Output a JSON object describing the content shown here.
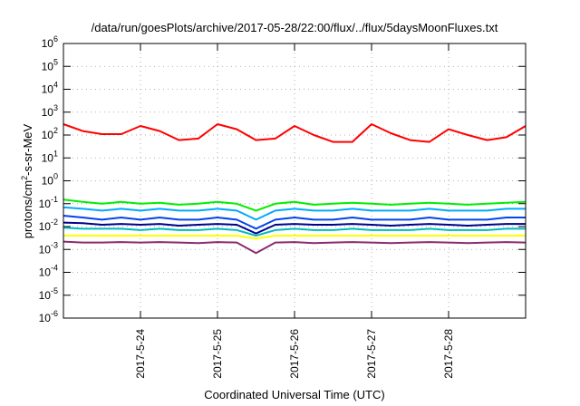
{
  "chart_data": {
    "type": "line",
    "title": "/data/run/goesPlots/archive/2017-05-28/22:00/flux/../flux/5daysMoonFluxes.txt",
    "xlabel": "Coordinated Universal Time (UTC)",
    "ylabel": "protons/cm2-s-sr-MeV",
    "yscale": "log",
    "ylim": [
      1e-06,
      1000000.0
    ],
    "xlim": [
      "2017-05-23 00:00",
      "2017-05-29 00:00"
    ],
    "grid": true,
    "legend": "none",
    "x_ticks": [
      "2017-5-24",
      "2017-5-25",
      "2017-5-26",
      "2017-5-27",
      "2017-5-28"
    ],
    "y_ticks": [
      {
        "base": "10",
        "exp": "-6"
      },
      {
        "base": "10",
        "exp": "-5"
      },
      {
        "base": "10",
        "exp": "-4"
      },
      {
        "base": "10",
        "exp": "-3"
      },
      {
        "base": "10",
        "exp": "-2"
      },
      {
        "base": "10",
        "exp": "-1"
      },
      {
        "base": "10",
        "exp": "0"
      },
      {
        "base": "10",
        "exp": "1"
      },
      {
        "base": "10",
        "exp": "2"
      },
      {
        "base": "10",
        "exp": "3"
      },
      {
        "base": "10",
        "exp": "4"
      },
      {
        "base": "10",
        "exp": "5"
      },
      {
        "base": "10",
        "exp": "6"
      }
    ],
    "series": [
      {
        "color": "#ff0000",
        "x": [
          "2017-05-23 00:00",
          "2017-05-23 06:00",
          "2017-05-23 12:00",
          "2017-05-23 18:00",
          "2017-05-24 00:00",
          "2017-05-24 06:00",
          "2017-05-24 12:00",
          "2017-05-24 18:00",
          "2017-05-25 00:00",
          "2017-05-25 06:00",
          "2017-05-25 12:00",
          "2017-05-25 18:00",
          "2017-05-26 00:00",
          "2017-05-26 06:00",
          "2017-05-26 12:00",
          "2017-05-26 18:00",
          "2017-05-27 00:00",
          "2017-05-27 06:00",
          "2017-05-27 12:00",
          "2017-05-27 18:00",
          "2017-05-28 00:00",
          "2017-05-28 06:00",
          "2017-05-28 12:00",
          "2017-05-28 18:00",
          "2017-05-29 00:00"
        ],
        "values": [
          300,
          150,
          110,
          110,
          250,
          150,
          60,
          70,
          300,
          180,
          60,
          70,
          250,
          100,
          50,
          50,
          300,
          120,
          60,
          50,
          180,
          100,
          60,
          80,
          250
        ]
      },
      {
        "color": "#00ee00",
        "x": [
          "2017-05-23 00:00",
          "2017-05-23 06:00",
          "2017-05-23 12:00",
          "2017-05-23 18:00",
          "2017-05-24 00:00",
          "2017-05-24 06:00",
          "2017-05-24 12:00",
          "2017-05-24 18:00",
          "2017-05-25 00:00",
          "2017-05-25 06:00",
          "2017-05-25 12:00",
          "2017-05-25 18:00",
          "2017-05-26 00:00",
          "2017-05-26 06:00",
          "2017-05-26 12:00",
          "2017-05-26 18:00",
          "2017-05-27 00:00",
          "2017-05-27 06:00",
          "2017-05-27 12:00",
          "2017-05-27 18:00",
          "2017-05-28 00:00",
          "2017-05-28 06:00",
          "2017-05-28 12:00",
          "2017-05-28 18:00",
          "2017-05-29 00:00"
        ],
        "values": [
          0.15,
          0.12,
          0.1,
          0.12,
          0.1,
          0.11,
          0.09,
          0.1,
          0.12,
          0.1,
          0.05,
          0.1,
          0.12,
          0.09,
          0.1,
          0.11,
          0.1,
          0.09,
          0.1,
          0.11,
          0.1,
          0.09,
          0.1,
          0.11,
          0.12
        ]
      },
      {
        "color": "#00aaff",
        "x": [
          "2017-05-23 00:00",
          "2017-05-23 06:00",
          "2017-05-23 12:00",
          "2017-05-23 18:00",
          "2017-05-24 00:00",
          "2017-05-24 06:00",
          "2017-05-24 12:00",
          "2017-05-24 18:00",
          "2017-05-25 00:00",
          "2017-05-25 06:00",
          "2017-05-25 12:00",
          "2017-05-25 18:00",
          "2017-05-26 00:00",
          "2017-05-26 06:00",
          "2017-05-26 12:00",
          "2017-05-26 18:00",
          "2017-05-27 00:00",
          "2017-05-27 06:00",
          "2017-05-27 12:00",
          "2017-05-27 18:00",
          "2017-05-28 00:00",
          "2017-05-28 06:00",
          "2017-05-28 12:00",
          "2017-05-28 18:00",
          "2017-05-29 00:00"
        ],
        "values": [
          0.07,
          0.06,
          0.05,
          0.06,
          0.05,
          0.06,
          0.05,
          0.05,
          0.06,
          0.05,
          0.02,
          0.05,
          0.06,
          0.05,
          0.05,
          0.06,
          0.05,
          0.05,
          0.05,
          0.06,
          0.05,
          0.05,
          0.05,
          0.06,
          0.06
        ]
      },
      {
        "color": "#0044ee",
        "x": [
          "2017-05-23 00:00",
          "2017-05-23 06:00",
          "2017-05-23 12:00",
          "2017-05-23 18:00",
          "2017-05-24 00:00",
          "2017-05-24 06:00",
          "2017-05-24 12:00",
          "2017-05-24 18:00",
          "2017-05-25 00:00",
          "2017-05-25 06:00",
          "2017-05-25 12:00",
          "2017-05-25 18:00",
          "2017-05-26 00:00",
          "2017-05-26 06:00",
          "2017-05-26 12:00",
          "2017-05-26 18:00",
          "2017-05-27 00:00",
          "2017-05-27 06:00",
          "2017-05-27 12:00",
          "2017-05-27 18:00",
          "2017-05-28 00:00",
          "2017-05-28 06:00",
          "2017-05-28 12:00",
          "2017-05-28 18:00",
          "2017-05-29 00:00"
        ],
        "values": [
          0.03,
          0.025,
          0.02,
          0.025,
          0.02,
          0.025,
          0.02,
          0.02,
          0.025,
          0.02,
          0.008,
          0.02,
          0.025,
          0.02,
          0.02,
          0.025,
          0.02,
          0.02,
          0.02,
          0.025,
          0.02,
          0.02,
          0.02,
          0.025,
          0.025
        ]
      },
      {
        "color": "#00008b",
        "x": [
          "2017-05-23 00:00",
          "2017-05-23 06:00",
          "2017-05-23 12:00",
          "2017-05-23 18:00",
          "2017-05-24 00:00",
          "2017-05-24 06:00",
          "2017-05-24 12:00",
          "2017-05-24 18:00",
          "2017-05-25 00:00",
          "2017-05-25 06:00",
          "2017-05-25 12:00",
          "2017-05-25 18:00",
          "2017-05-26 00:00",
          "2017-05-26 06:00",
          "2017-05-26 12:00",
          "2017-05-26 18:00",
          "2017-05-27 00:00",
          "2017-05-27 06:00",
          "2017-05-27 12:00",
          "2017-05-27 18:00",
          "2017-05-28 00:00",
          "2017-05-28 06:00",
          "2017-05-28 12:00",
          "2017-05-28 18:00",
          "2017-05-29 00:00"
        ],
        "values": [
          0.015,
          0.014,
          0.012,
          0.013,
          0.012,
          0.013,
          0.011,
          0.012,
          0.013,
          0.012,
          0.005,
          0.012,
          0.013,
          0.012,
          0.012,
          0.013,
          0.012,
          0.011,
          0.012,
          0.013,
          0.012,
          0.011,
          0.012,
          0.013,
          0.013
        ]
      },
      {
        "color": "#00bbbb",
        "x": [
          "2017-05-23 00:00",
          "2017-05-23 06:00",
          "2017-05-23 12:00",
          "2017-05-23 18:00",
          "2017-05-24 00:00",
          "2017-05-24 06:00",
          "2017-05-24 12:00",
          "2017-05-24 18:00",
          "2017-05-25 00:00",
          "2017-05-25 06:00",
          "2017-05-25 12:00",
          "2017-05-25 18:00",
          "2017-05-26 00:00",
          "2017-05-26 06:00",
          "2017-05-26 12:00",
          "2017-05-26 18:00",
          "2017-05-27 00:00",
          "2017-05-27 06:00",
          "2017-05-27 12:00",
          "2017-05-27 18:00",
          "2017-05-28 00:00",
          "2017-05-28 06:00",
          "2017-05-28 12:00",
          "2017-05-28 18:00",
          "2017-05-29 00:00"
        ],
        "values": [
          0.009,
          0.008,
          0.008,
          0.008,
          0.007,
          0.008,
          0.007,
          0.007,
          0.008,
          0.007,
          0.004,
          0.007,
          0.008,
          0.007,
          0.007,
          0.008,
          0.007,
          0.007,
          0.007,
          0.008,
          0.007,
          0.007,
          0.007,
          0.008,
          0.008
        ]
      },
      {
        "color": "#ffff00",
        "x": [
          "2017-05-23 00:00",
          "2017-05-23 06:00",
          "2017-05-23 12:00",
          "2017-05-23 18:00",
          "2017-05-24 00:00",
          "2017-05-24 06:00",
          "2017-05-24 12:00",
          "2017-05-24 18:00",
          "2017-05-25 00:00",
          "2017-05-25 06:00",
          "2017-05-25 12:00",
          "2017-05-25 18:00",
          "2017-05-26 00:00",
          "2017-05-26 06:00",
          "2017-05-26 12:00",
          "2017-05-26 18:00",
          "2017-05-27 00:00",
          "2017-05-27 06:00",
          "2017-05-27 12:00",
          "2017-05-27 18:00",
          "2017-05-28 00:00",
          "2017-05-28 06:00",
          "2017-05-28 12:00",
          "2017-05-28 18:00",
          "2017-05-29 00:00"
        ],
        "values": [
          0.004,
          0.004,
          0.004,
          0.004,
          0.004,
          0.004,
          0.004,
          0.004,
          0.004,
          0.004,
          0.003,
          0.004,
          0.004,
          0.004,
          0.004,
          0.004,
          0.004,
          0.004,
          0.004,
          0.004,
          0.004,
          0.004,
          0.004,
          0.004,
          0.004
        ]
      },
      {
        "color": "#8b2a6e",
        "x": [
          "2017-05-23 00:00",
          "2017-05-23 06:00",
          "2017-05-23 12:00",
          "2017-05-23 18:00",
          "2017-05-24 00:00",
          "2017-05-24 06:00",
          "2017-05-24 12:00",
          "2017-05-24 18:00",
          "2017-05-25 00:00",
          "2017-05-25 06:00",
          "2017-05-25 12:00",
          "2017-05-25 18:00",
          "2017-05-26 00:00",
          "2017-05-26 06:00",
          "2017-05-26 12:00",
          "2017-05-26 18:00",
          "2017-05-27 00:00",
          "2017-05-27 06:00",
          "2017-05-27 12:00",
          "2017-05-27 18:00",
          "2017-05-28 00:00",
          "2017-05-28 06:00",
          "2017-05-28 12:00",
          "2017-05-28 18:00",
          "2017-05-29 00:00"
        ],
        "values": [
          0.0022,
          0.002,
          0.002,
          0.0021,
          0.002,
          0.0021,
          0.002,
          0.0019,
          0.0021,
          0.002,
          0.0007,
          0.002,
          0.0021,
          0.0019,
          0.002,
          0.0021,
          0.002,
          0.0019,
          0.002,
          0.0021,
          0.002,
          0.0019,
          0.002,
          0.0021,
          0.002
        ]
      }
    ]
  }
}
